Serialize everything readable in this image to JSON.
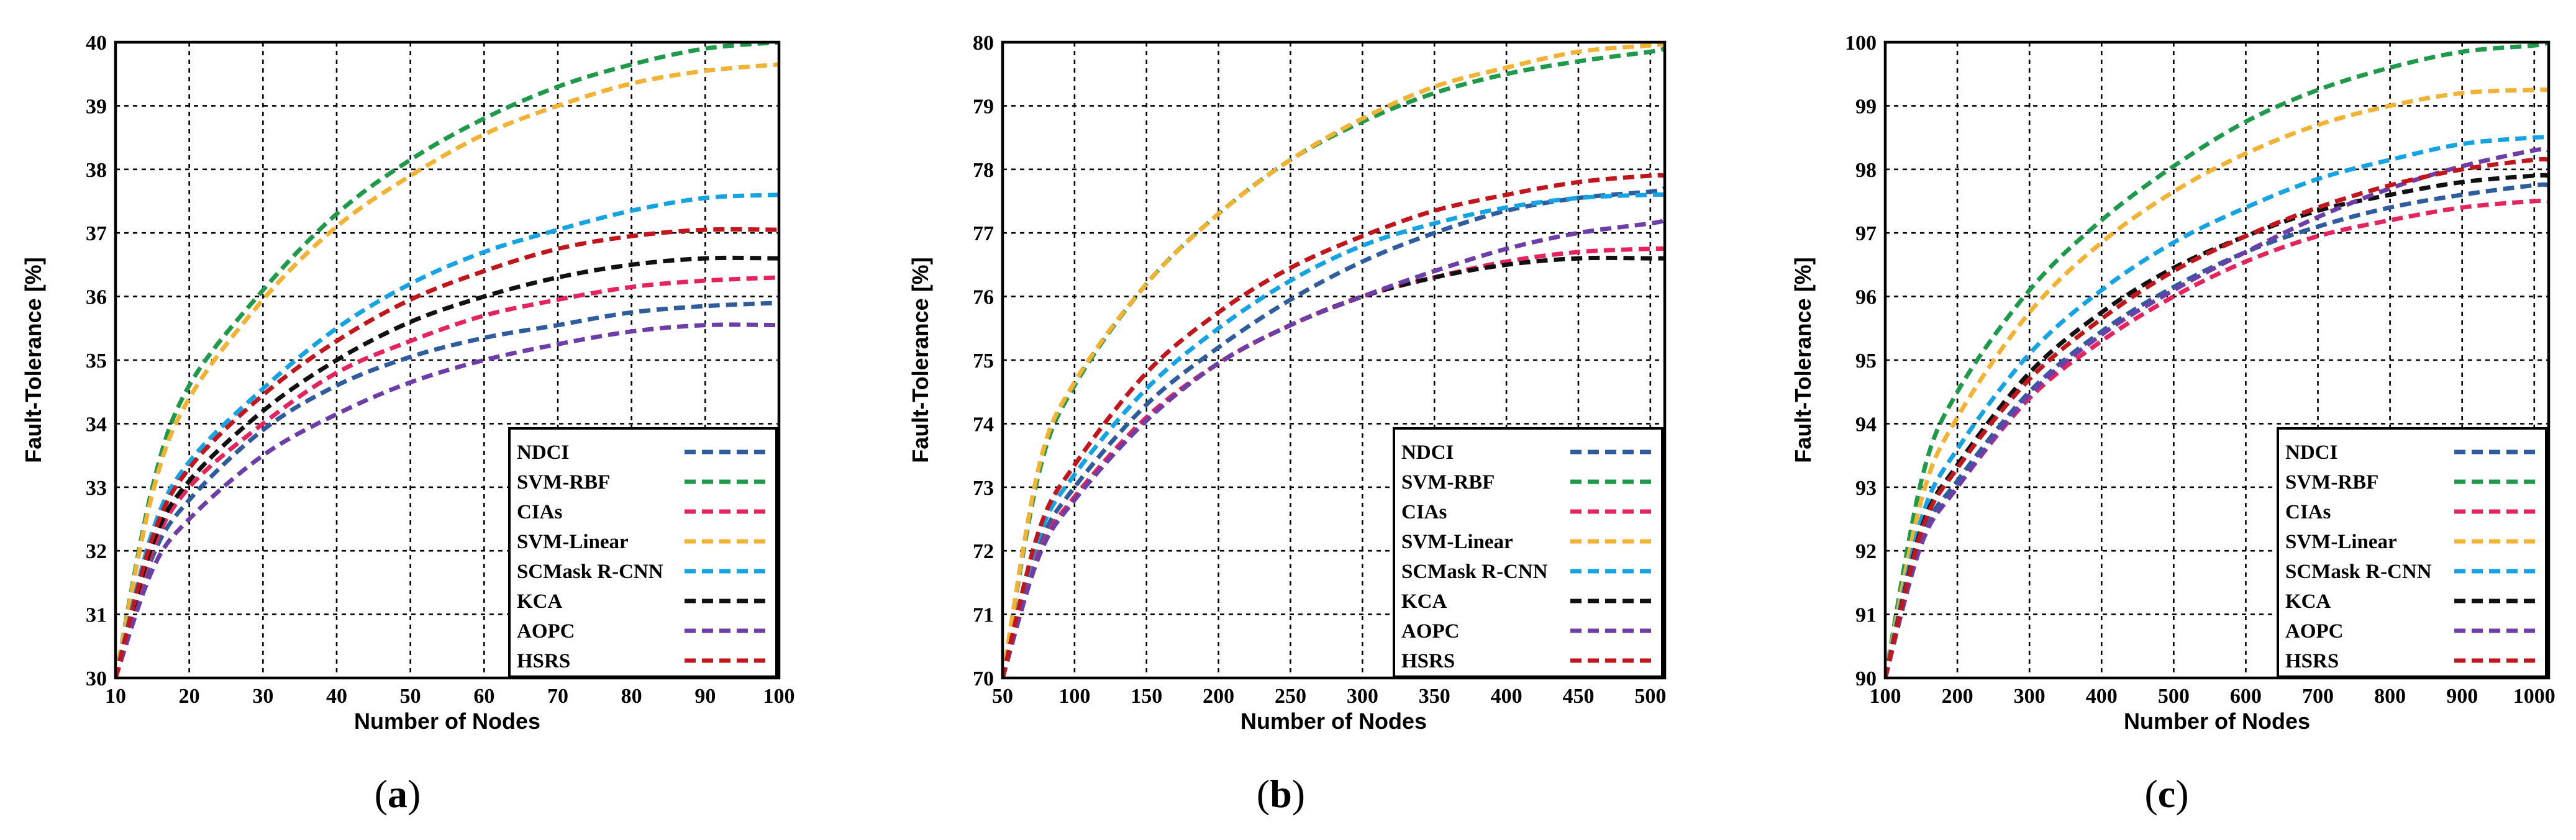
{
  "chart_data": [
    {
      "type": "line",
      "panel": "a",
      "caption_open": "(",
      "caption_letter": "a",
      "caption_close": ")",
      "xlabel": "Number of Nodes",
      "ylabel": "Fault-Tolerance [%]",
      "xlim": [
        10,
        100
      ],
      "ylim": [
        30,
        40
      ],
      "xticks": [
        10,
        20,
        30,
        40,
        50,
        60,
        70,
        80,
        90,
        100
      ],
      "yticks": [
        30,
        31,
        32,
        33,
        34,
        35,
        36,
        37,
        38,
        39,
        40
      ],
      "grid": true,
      "legend_position": "bottom-right",
      "x": [
        10,
        15,
        20,
        30,
        40,
        50,
        60,
        70,
        80,
        90,
        100
      ],
      "series": [
        {
          "name": "NDCI",
          "color": "#2e5c9c",
          "values": [
            30.0,
            31.9,
            32.8,
            33.9,
            34.6,
            35.05,
            35.35,
            35.55,
            35.75,
            35.85,
            35.9
          ]
        },
        {
          "name": "SVM-RBF",
          "color": "#1f9a4b",
          "values": [
            30.0,
            33.0,
            34.6,
            36.1,
            37.3,
            38.15,
            38.8,
            39.3,
            39.65,
            39.9,
            40.0
          ]
        },
        {
          "name": "CIAs",
          "color": "#e5245e",
          "values": [
            30.0,
            32.0,
            33.0,
            34.0,
            34.8,
            35.3,
            35.7,
            35.95,
            36.15,
            36.25,
            36.3
          ]
        },
        {
          "name": "SVM-Linear",
          "color": "#f2b233",
          "values": [
            30.0,
            32.9,
            34.4,
            35.95,
            37.1,
            37.9,
            38.55,
            39.0,
            39.35,
            39.55,
            39.65
          ]
        },
        {
          "name": "SCMask R-CNN",
          "color": "#16a3e4",
          "values": [
            30.0,
            32.3,
            33.4,
            34.55,
            35.5,
            36.2,
            36.7,
            37.05,
            37.35,
            37.55,
            37.6
          ]
        },
        {
          "name": "KCA",
          "color": "#111111",
          "values": [
            30.0,
            32.1,
            33.1,
            34.2,
            35.0,
            35.6,
            36.0,
            36.3,
            36.5,
            36.6,
            36.6
          ]
        },
        {
          "name": "AOPC",
          "color": "#6e3ea8",
          "values": [
            30.0,
            31.7,
            32.5,
            33.5,
            34.15,
            34.65,
            35.0,
            35.25,
            35.45,
            35.55,
            35.55
          ]
        },
        {
          "name": "HSRS",
          "color": "#c0161c",
          "values": [
            30.0,
            32.2,
            33.3,
            34.45,
            35.3,
            35.95,
            36.4,
            36.75,
            36.95,
            37.05,
            37.05
          ]
        }
      ]
    },
    {
      "type": "line",
      "panel": "b",
      "caption_open": "(",
      "caption_letter": "b",
      "caption_close": ")",
      "xlabel": "Number of Nodes",
      "ylabel": "Fault-Tolerance [%]",
      "xlim": [
        50,
        510
      ],
      "ylim": [
        70,
        80
      ],
      "xticks": [
        50,
        100,
        150,
        200,
        250,
        300,
        350,
        400,
        450,
        500
      ],
      "yticks": [
        70,
        71,
        72,
        73,
        74,
        75,
        76,
        77,
        78,
        79,
        80
      ],
      "grid": true,
      "legend_position": "bottom-right",
      "x": [
        50,
        75,
        100,
        150,
        200,
        250,
        300,
        350,
        400,
        450,
        500,
        510
      ],
      "series": [
        {
          "name": "NDCI",
          "color": "#2e5c9c",
          "values": [
            70.0,
            72.05,
            73.0,
            74.3,
            75.2,
            75.95,
            76.55,
            77.0,
            77.35,
            77.55,
            77.65,
            77.7
          ]
        },
        {
          "name": "SVM-RBF",
          "color": "#1f9a4b",
          "values": [
            70.0,
            73.2,
            74.6,
            76.2,
            77.3,
            78.15,
            78.75,
            79.2,
            79.5,
            79.7,
            79.85,
            79.9
          ]
        },
        {
          "name": "CIAs",
          "color": "#e5245e",
          "values": [
            70.0,
            71.95,
            72.85,
            74.1,
            74.95,
            75.55,
            76.0,
            76.3,
            76.55,
            76.7,
            76.75,
            76.75
          ]
        },
        {
          "name": "SVM-Linear",
          "color": "#f2b233",
          "values": [
            70.0,
            73.3,
            74.65,
            76.2,
            77.3,
            78.15,
            78.8,
            79.3,
            79.6,
            79.85,
            79.95,
            79.97
          ]
        },
        {
          "name": "SCMask R-CNN",
          "color": "#16a3e4",
          "values": [
            70.0,
            72.2,
            73.2,
            74.55,
            75.5,
            76.25,
            76.8,
            77.15,
            77.4,
            77.55,
            77.6,
            77.6
          ]
        },
        {
          "name": "KCA",
          "color": "#111111",
          "values": [
            70.0,
            71.9,
            72.8,
            74.05,
            74.95,
            75.55,
            76.0,
            76.3,
            76.5,
            76.6,
            76.6,
            76.6
          ]
        },
        {
          "name": "AOPC",
          "color": "#6e3ea8",
          "values": [
            70.0,
            71.9,
            72.8,
            74.05,
            74.95,
            75.55,
            76.0,
            76.4,
            76.75,
            77.0,
            77.15,
            77.2
          ]
        },
        {
          "name": "HSRS",
          "color": "#c0161c",
          "values": [
            70.0,
            72.3,
            73.35,
            74.8,
            75.75,
            76.45,
            76.95,
            77.35,
            77.6,
            77.8,
            77.9,
            77.9
          ]
        }
      ]
    },
    {
      "type": "line",
      "panel": "c",
      "caption_open": "(",
      "caption_letter": "c",
      "caption_close": ")",
      "xlabel": "Number of Nodes",
      "ylabel": "Fault-Tolerance [%]",
      "xlim": [
        100,
        1020
      ],
      "ylim": [
        90,
        100
      ],
      "xticks": [
        100,
        200,
        300,
        400,
        500,
        600,
        700,
        800,
        900,
        1000
      ],
      "yticks": [
        90,
        91,
        92,
        93,
        94,
        95,
        96,
        97,
        98,
        99,
        100
      ],
      "grid": true,
      "legend_position": "bottom-right",
      "x": [
        100,
        150,
        200,
        300,
        400,
        500,
        600,
        700,
        800,
        900,
        1000,
        1020
      ],
      "series": [
        {
          "name": "NDCI",
          "color": "#2e5c9c",
          "values": [
            90.0,
            92.2,
            93.1,
            94.5,
            95.45,
            96.15,
            96.7,
            97.1,
            97.4,
            97.6,
            97.75,
            97.75
          ]
        },
        {
          "name": "SVM-RBF",
          "color": "#1f9a4b",
          "values": [
            90.0,
            93.1,
            94.5,
            96.1,
            97.2,
            98.05,
            98.75,
            99.25,
            99.6,
            99.85,
            99.95,
            100.0
          ]
        },
        {
          "name": "CIAs",
          "color": "#e5245e",
          "values": [
            90.0,
            92.1,
            93.0,
            94.4,
            95.3,
            96.0,
            96.55,
            96.95,
            97.2,
            97.4,
            97.5,
            97.5
          ]
        },
        {
          "name": "SVM-Linear",
          "color": "#f2b233",
          "values": [
            90.0,
            92.8,
            94.1,
            95.75,
            96.85,
            97.65,
            98.25,
            98.7,
            99.0,
            99.2,
            99.25,
            99.25
          ]
        },
        {
          "name": "SCMask R-CNN",
          "color": "#16a3e4",
          "values": [
            90.0,
            92.5,
            93.6,
            95.1,
            96.1,
            96.85,
            97.4,
            97.85,
            98.15,
            98.4,
            98.5,
            98.5
          ]
        },
        {
          "name": "KCA",
          "color": "#111111",
          "values": [
            90.0,
            92.35,
            93.35,
            94.8,
            95.75,
            96.45,
            96.95,
            97.35,
            97.6,
            97.8,
            97.9,
            97.9
          ]
        },
        {
          "name": "AOPC",
          "color": "#6e3ea8",
          "values": [
            90.0,
            92.1,
            93.0,
            94.45,
            95.4,
            96.1,
            96.7,
            97.25,
            97.7,
            98.05,
            98.3,
            98.3
          ]
        },
        {
          "name": "HSRS",
          "color": "#c0161c",
          "values": [
            90.0,
            92.3,
            93.3,
            94.7,
            95.65,
            96.4,
            96.95,
            97.4,
            97.75,
            98.0,
            98.15,
            98.15
          ]
        }
      ]
    }
  ]
}
